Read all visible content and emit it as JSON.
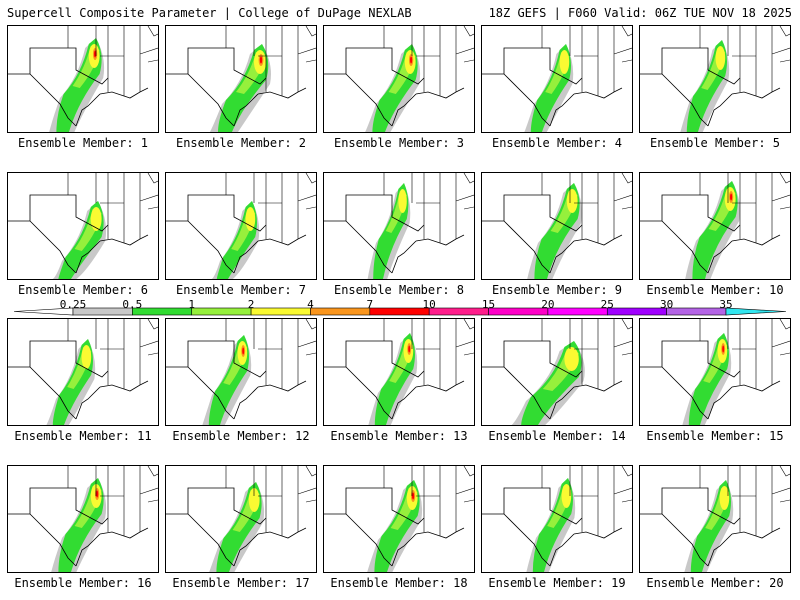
{
  "header": {
    "left": "Supercell Composite Parameter | College of DuPage NEXLAB",
    "right": "18Z GEFS | F060 Valid: 06Z TUE NOV 18 2025"
  },
  "member_label_prefix": "Ensemble Member:",
  "members": [
    "1",
    "2",
    "3",
    "4",
    "5",
    "6",
    "7",
    "8",
    "9",
    "10",
    "11",
    "12",
    "13",
    "14",
    "15",
    "16",
    "17",
    "18",
    "19",
    "20"
  ],
  "legend": {
    "ticks": [
      "0.25",
      "0.5",
      "1",
      "2",
      "4",
      "7",
      "10",
      "15",
      "20",
      "25",
      "30",
      "35"
    ],
    "colors": [
      "#c8c8c8",
      "#32dc32",
      "#96f03c",
      "#fafa32",
      "#fa961e",
      "#ff0000",
      "#ff1e8c",
      "#ff00c8",
      "#ff00ff",
      "#a000ff",
      "#b464e6",
      "#32e6f0"
    ]
  }
}
